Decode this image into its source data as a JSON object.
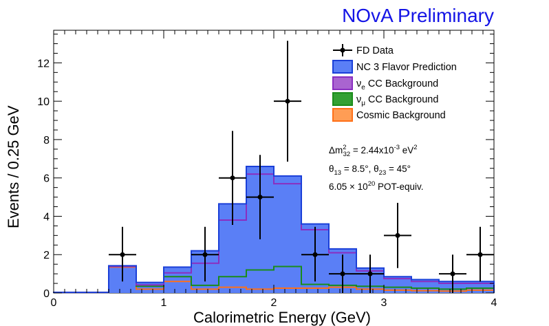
{
  "chart_data": {
    "type": "stacked-histogram-with-points",
    "title": "NOvA Preliminary",
    "xlabel": "Calorimetric Energy (GeV)",
    "ylabel": "Events / 0.25 GeV",
    "xlim": [
      0,
      4
    ],
    "ylim": [
      0,
      13.7
    ],
    "bin_width": 0.25,
    "bin_edges": [
      0,
      0.25,
      0.5,
      0.75,
      1.0,
      1.25,
      1.5,
      1.75,
      2.0,
      2.25,
      2.5,
      2.75,
      3.0,
      3.25,
      3.5,
      3.75,
      4.0
    ],
    "x_ticks": [
      0,
      1,
      2,
      3,
      4
    ],
    "x_tick_labels": [
      "0",
      "1",
      "2",
      "3",
      "4"
    ],
    "y_ticks": [
      0,
      2,
      4,
      6,
      8,
      10,
      12
    ],
    "y_tick_labels": [
      "0",
      "2",
      "4",
      "6",
      "8",
      "10",
      "12"
    ],
    "colors": {
      "nc": "#5a7ff6",
      "nc_line": "#1a3fd8",
      "nue": "#a964d0",
      "nue_line": "#8a2ec0",
      "numu": "#33a033",
      "numu_line": "#1a8c1a",
      "cosmic": "#ff9d55",
      "cosmic_line": "#ff7018",
      "data": "#000000",
      "title": "#1414e6"
    },
    "stack_cumulative": {
      "cosmic": [
        0.03,
        0.03,
        1.35,
        0.2,
        0.6,
        0.2,
        0.3,
        0.2,
        0.25,
        0.25,
        0.3,
        0.2,
        0.15,
        0.12,
        0.1,
        0.15
      ],
      "numu": [
        0.03,
        0.03,
        1.38,
        0.35,
        0.85,
        0.4,
        0.85,
        1.2,
        1.38,
        0.45,
        0.4,
        0.35,
        0.3,
        0.25,
        0.2,
        0.25
      ],
      "nue": [
        0.03,
        0.03,
        1.38,
        0.42,
        1.05,
        1.55,
        3.8,
        6.2,
        5.7,
        3.3,
        2.1,
        1.15,
        0.75,
        0.6,
        0.5,
        0.5
      ],
      "nc": [
        0.03,
        0.03,
        1.42,
        0.55,
        1.35,
        2.2,
        4.65,
        6.6,
        6.1,
        3.6,
        2.3,
        1.3,
        0.85,
        0.7,
        0.6,
        0.6
      ]
    },
    "data_points": [
      {
        "x": 0.625,
        "y": 2,
        "err_lo": 1.4,
        "err_hi": 1.45
      },
      {
        "x": 1.375,
        "y": 2,
        "err_lo": 1.4,
        "err_hi": 1.45
      },
      {
        "x": 1.625,
        "y": 6,
        "err_lo": 2.45,
        "err_hi": 2.45
      },
      {
        "x": 1.875,
        "y": 5,
        "err_lo": 2.2,
        "err_hi": 2.2
      },
      {
        "x": 2.125,
        "y": 10,
        "err_lo": 3.15,
        "err_hi": 3.15
      },
      {
        "x": 2.375,
        "y": 2,
        "err_lo": 1.4,
        "err_hi": 1.45
      },
      {
        "x": 2.625,
        "y": 1,
        "err_lo": 1.0,
        "err_hi": 1.0
      },
      {
        "x": 2.875,
        "y": 1,
        "err_lo": 1.0,
        "err_hi": 1.0
      },
      {
        "x": 3.125,
        "y": 3,
        "err_lo": 1.7,
        "err_hi": 1.7
      },
      {
        "x": 3.625,
        "y": 1,
        "err_lo": 1.0,
        "err_hi": 1.0
      },
      {
        "x": 3.875,
        "y": 2,
        "err_lo": 1.4,
        "err_hi": 1.45
      }
    ],
    "legend": [
      {
        "key": "data",
        "label": "FD Data"
      },
      {
        "key": "nc",
        "label": "NC 3 Flavor Prediction"
      },
      {
        "key": "nue",
        "label_main": "ν",
        "label_sub": "e",
        "label_rest": " CC Background"
      },
      {
        "key": "numu",
        "label_main": "ν",
        "label_sub": "μ",
        "label_rest": " CC Background"
      },
      {
        "key": "cosmic",
        "label": "Cosmic Background"
      }
    ],
    "annotations": {
      "line1": {
        "a": "Δm",
        "sup": "2",
        "sub": "32",
        "b": " = 2.44x10",
        "sup2": "-3",
        "c": " eV",
        "sup3": "2"
      },
      "line2": {
        "a": "θ",
        "sub": "13",
        "b": " = 8.5°, θ",
        "sub2": "23",
        "c": " = 45°"
      },
      "line3": {
        "a": "6.05 × 10",
        "sup": "20",
        "b": " POT-equiv."
      }
    }
  }
}
